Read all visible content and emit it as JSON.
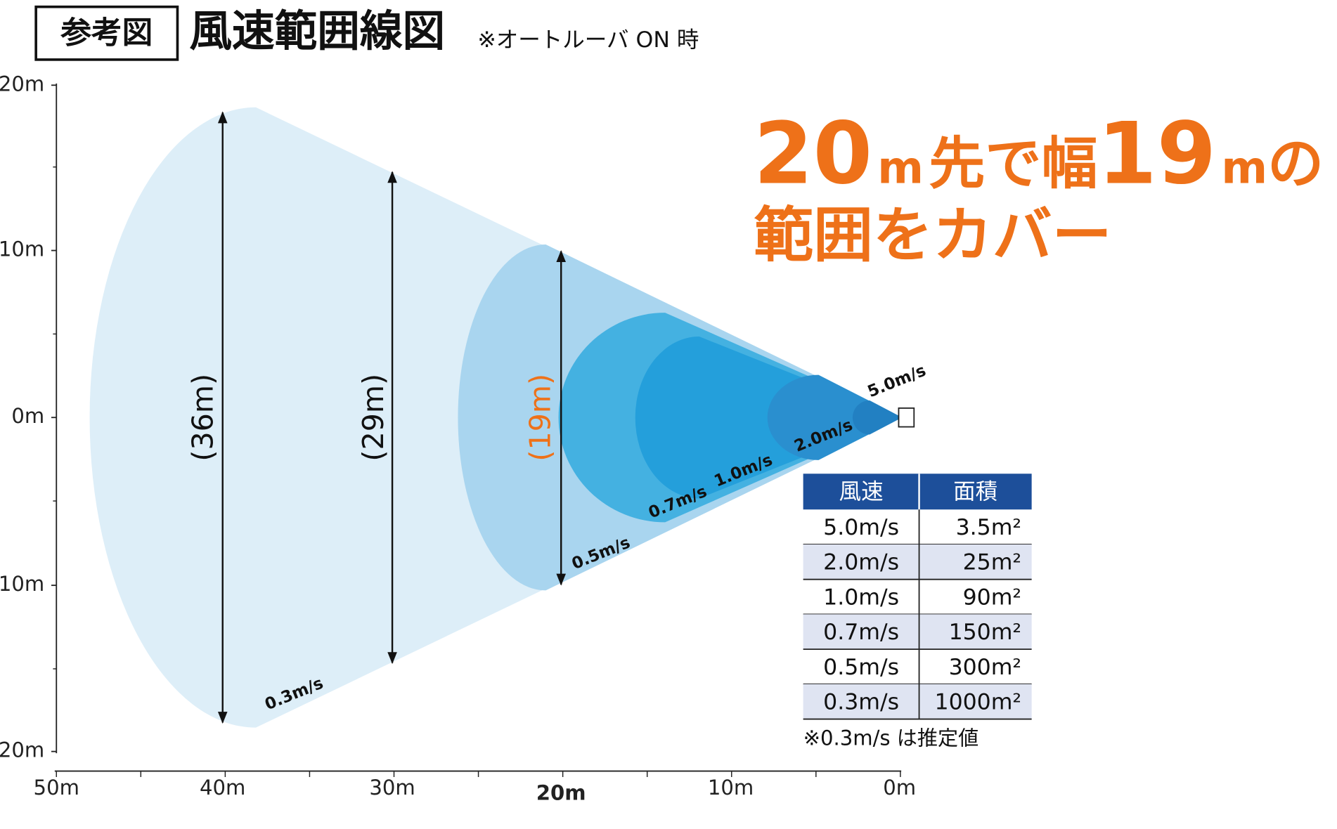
{
  "header": {
    "label": "参考図",
    "title": "風速範囲線図",
    "note": "※オートルーバ ON 時"
  },
  "y_axis": {
    "labels": [
      "20m",
      "10m",
      "0m",
      "10m",
      "20m"
    ]
  },
  "x_axis": {
    "labels": [
      "50m",
      "40m",
      "30m",
      "20m",
      "10m",
      "0m"
    ]
  },
  "widths": [
    "(36m)",
    "(29m)",
    "(19m)"
  ],
  "speeds": [
    "0.3m/s",
    "0.5m/s",
    "0.7m/s",
    "1.0m/s",
    "2.0m/s",
    "5.0m/s"
  ],
  "headline": {
    "line1": [
      "20",
      "m",
      "先で幅",
      "19",
      "m",
      "の"
    ],
    "line2": "範囲をカバー"
  },
  "table": {
    "header": [
      "風速",
      "面積"
    ],
    "rows": [
      [
        "5.0m/s",
        "3.5m²"
      ],
      [
        "2.0m/s",
        "25m²"
      ],
      [
        "1.0m/s",
        "90m²"
      ],
      [
        "0.7m/s",
        "150m²"
      ],
      [
        "0.5m/s",
        "300m²"
      ],
      [
        "0.3m/s",
        "1000m²"
      ]
    ]
  },
  "footnote": "※0.3m/s は推定値"
}
